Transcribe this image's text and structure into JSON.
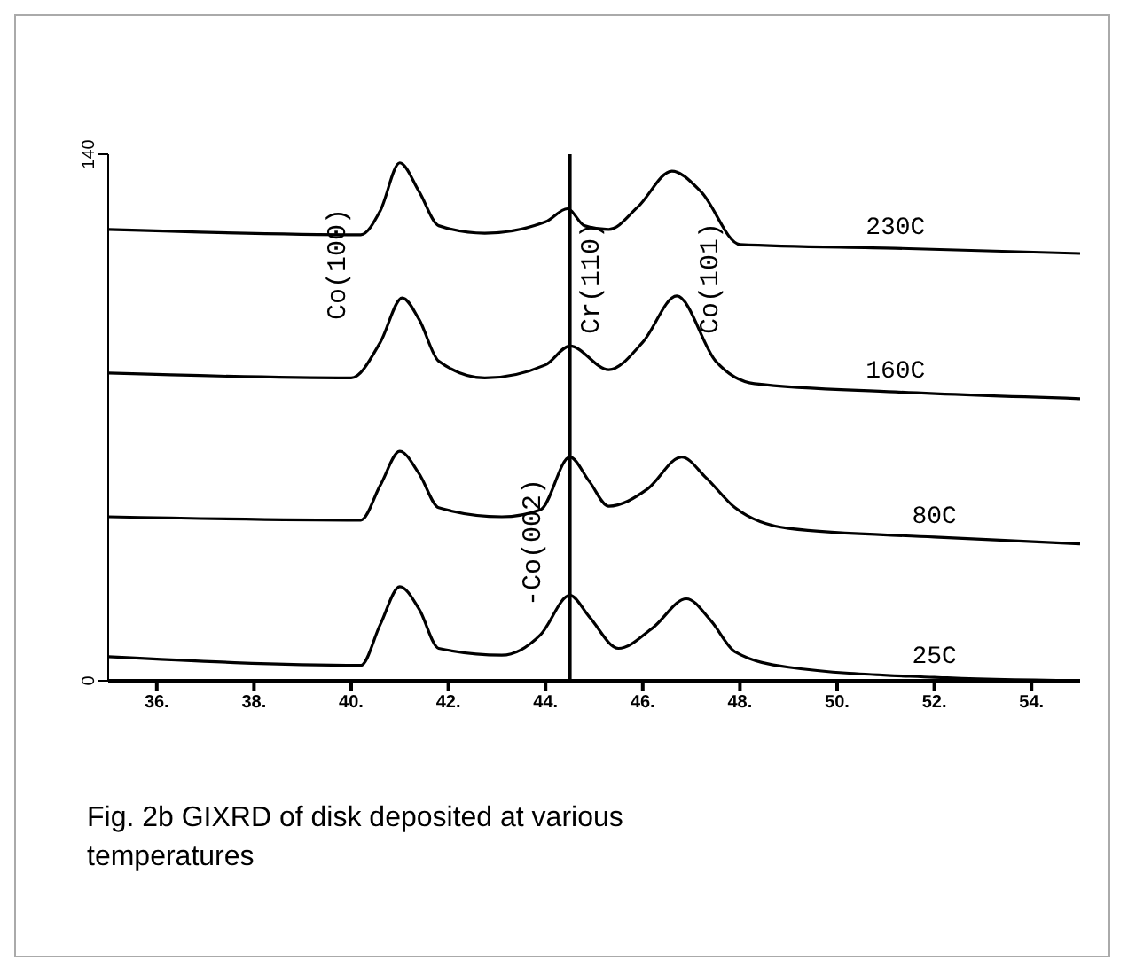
{
  "chart_data": {
    "type": "line",
    "xlim": [
      35,
      55
    ],
    "ylim": [
      0,
      140
    ],
    "xticks": [
      {
        "value": 36,
        "label": "36."
      },
      {
        "value": 38,
        "label": "38."
      },
      {
        "value": 40,
        "label": "40."
      },
      {
        "value": 42,
        "label": "42."
      },
      {
        "value": 44,
        "label": "44."
      },
      {
        "value": 46,
        "label": "46."
      },
      {
        "value": 48,
        "label": "48."
      },
      {
        "value": 50,
        "label": "50."
      },
      {
        "value": 52,
        "label": "52."
      },
      {
        "value": 54,
        "label": "54."
      }
    ],
    "yticks": [
      0,
      140
    ],
    "grid": false,
    "legend": false,
    "marker": "none",
    "line_style": "solid",
    "series": [
      {
        "name": "230C",
        "color": "#000000",
        "x": [
          35,
          40.2,
          40.6,
          41.0,
          41.4,
          41.8,
          42.75,
          44.0,
          44.45,
          44.8,
          45.3,
          45.9,
          46.6,
          47.2,
          48.0,
          51.2,
          55
        ],
        "values": [
          120,
          118.6,
          125,
          137.7,
          130,
          121,
          119,
          122,
          125.5,
          121,
          120,
          126,
          135.5,
          130,
          116,
          115,
          113.6
        ]
      },
      {
        "name": "160C",
        "color": "#000000",
        "x": [
          35,
          40.0,
          40.6,
          41.05,
          41.4,
          41.8,
          42.75,
          44.0,
          44.5,
          45.3,
          46.0,
          46.7,
          47.5,
          48.3,
          51.2,
          55
        ],
        "values": [
          81.8,
          80.5,
          90,
          101.8,
          96,
          85,
          80.5,
          84,
          89,
          82.7,
          90,
          102.3,
          85,
          79,
          76.8,
          75
        ]
      },
      {
        "name": "80C",
        "color": "#000000",
        "x": [
          35,
          40.2,
          40.6,
          41.0,
          41.4,
          41.8,
          43.1,
          43.9,
          44.5,
          44.9,
          45.3,
          46.1,
          46.8,
          47.3,
          47.9,
          49.0,
          52,
          55
        ],
        "values": [
          43.6,
          42.7,
          52,
          61,
          55,
          46,
          43.6,
          45.5,
          59.5,
          53,
          46.4,
          51,
          59.5,
          54,
          46,
          40.5,
          38.2,
          36.4
        ]
      },
      {
        "name": "25C",
        "color": "#000000",
        "x": [
          35,
          40.2,
          40.6,
          41.0,
          41.4,
          41.8,
          43.1,
          43.9,
          44.5,
          44.9,
          45.5,
          46.2,
          46.9,
          47.4,
          47.9,
          49.0,
          52,
          55
        ],
        "values": [
          6.4,
          4.1,
          15,
          25,
          19,
          8.6,
          6.8,
          12.3,
          22.7,
          17,
          8.6,
          14,
          21.8,
          16,
          7.7,
          3.6,
          0.9,
          0
        ]
      }
    ],
    "ref_lines": [
      {
        "axis": "x",
        "value": 44.5,
        "color": "#000000"
      }
    ],
    "annotations": [
      "Co(100)",
      "Cr(110)",
      "Co(101)",
      "-Co(002)",
      "Fig. 2b GIXRD of disk deposited at various temperatures"
    ]
  }
}
